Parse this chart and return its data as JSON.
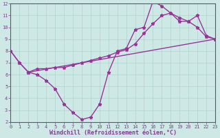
{
  "xlabel": "Windchill (Refroidissement éolien,°C)",
  "xlim": [
    0,
    23
  ],
  "ylim": [
    2,
    12
  ],
  "xticks": [
    0,
    1,
    2,
    3,
    4,
    5,
    6,
    7,
    8,
    9,
    10,
    11,
    12,
    13,
    14,
    15,
    16,
    17,
    18,
    19,
    20,
    21,
    22,
    23
  ],
  "yticks": [
    2,
    3,
    4,
    5,
    6,
    7,
    8,
    9,
    10,
    11,
    12
  ],
  "bg_color": "#cee9e5",
  "line_color": "#993399",
  "line_width": 1.0,
  "marker": "*",
  "marker_size": 3.5,
  "series": [
    {
      "x": [
        0,
        1,
        2,
        3,
        4,
        5,
        6,
        7,
        8,
        9,
        10,
        11,
        12,
        13,
        14,
        15,
        16,
        17,
        18,
        19,
        20,
        21,
        22,
        23
      ],
      "y": [
        8,
        7,
        6.2,
        6.5,
        6.5,
        6.6,
        6.6,
        6.8,
        7.0,
        7.2,
        7.4,
        7.6,
        7.9,
        8.1,
        8.6,
        9.5,
        10.3,
        11.0,
        11.2,
        10.8,
        10.5,
        10.0,
        9.2,
        9.0
      ]
    },
    {
      "x": [
        0,
        1,
        2,
        3,
        4,
        5,
        6,
        7,
        8,
        9,
        10,
        11,
        12,
        13,
        14,
        15,
        16,
        17,
        18,
        19,
        20,
        21,
        22,
        23
      ],
      "y": [
        8.0,
        7.0,
        6.2,
        6.0,
        5.5,
        4.8,
        3.5,
        2.8,
        2.2,
        2.4,
        3.5,
        6.2,
        8.0,
        8.2,
        9.8,
        10.0,
        12.2,
        11.8,
        11.2,
        10.5,
        10.5,
        11.0,
        9.3,
        9.0
      ]
    },
    {
      "x": [
        2,
        23
      ],
      "y": [
        6.2,
        9.0
      ]
    }
  ],
  "grid_color": "#b0d4cc",
  "font_color": "#7b3f8c",
  "tick_fontsize": 5.0,
  "label_fontsize": 6.0
}
